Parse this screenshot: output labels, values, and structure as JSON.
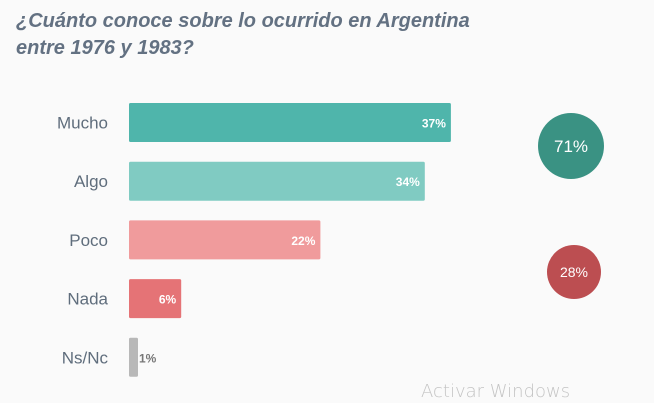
{
  "chart_data": {
    "type": "bar",
    "orientation": "horizontal",
    "title_line1": "¿Cuánto conoce sobre lo ocurrido en Argentina",
    "title_line2": "entre 1976 y 1983?",
    "categories": [
      "Mucho",
      "Algo",
      "Poco",
      "Nada",
      "Ns/Nc"
    ],
    "values": [
      37,
      34,
      22,
      6,
      1
    ],
    "value_labels": [
      "37%",
      "34%",
      "22%",
      "6%",
      "1%"
    ],
    "colors": [
      "#4fb5ab",
      "#80cbc2",
      "#f09b9c",
      "#e57376",
      "#b8b8b8"
    ],
    "xlim": [
      0,
      100
    ],
    "grid": false,
    "summary": [
      {
        "label": "71%",
        "value": 71,
        "color": "#3a9283",
        "groups": [
          "Mucho",
          "Algo"
        ]
      },
      {
        "label": "28%",
        "value": 28,
        "color": "#bc4e51",
        "groups": [
          "Poco",
          "Nada"
        ]
      }
    ]
  },
  "overlay": {
    "watermark": "Activar Windows"
  }
}
